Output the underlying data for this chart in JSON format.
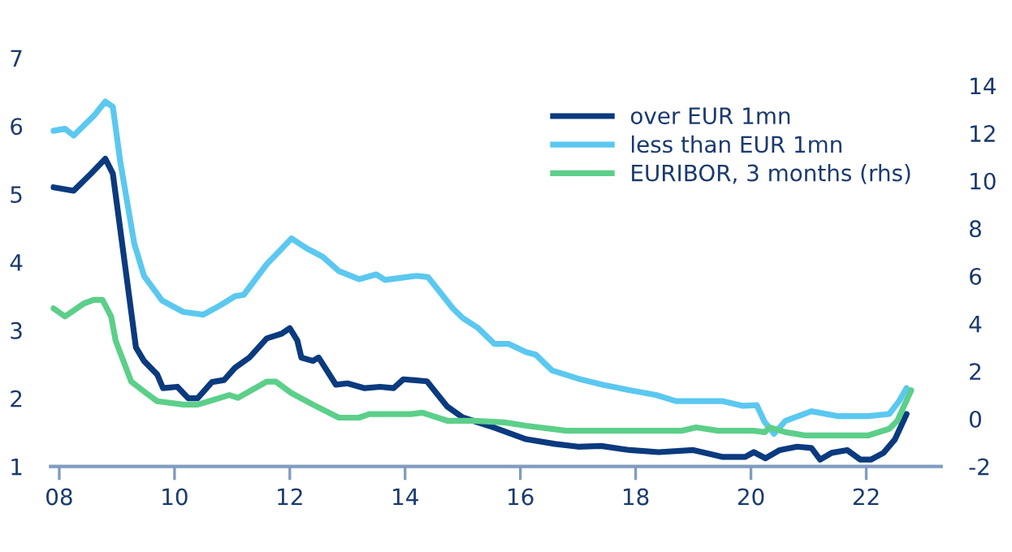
{
  "chart_data": {
    "type": "line",
    "legend": "top right",
    "grid": false,
    "xlim": [
      2007.85,
      2023.3
    ],
    "xticks": [
      {
        "value": 2008,
        "label": "08"
      },
      {
        "value": 2010,
        "label": "10"
      },
      {
        "value": 2012,
        "label": "12"
      },
      {
        "value": 2014,
        "label": "14"
      },
      {
        "value": 2016,
        "label": "16"
      },
      {
        "value": 2018,
        "label": "18"
      },
      {
        "value": 2020,
        "label": "20"
      },
      {
        "value": 2022,
        "label": "22"
      }
    ],
    "ylim": [
      1,
      7
    ],
    "yticks": [
      1,
      2,
      3,
      4,
      5,
      6,
      7
    ],
    "y2lim": [
      -2,
      14
    ],
    "y2ticks": [
      -2,
      0,
      2,
      4,
      6,
      8,
      10,
      12,
      14
    ],
    "series": [
      {
        "name": "over EUR 1mn",
        "color": "#0b3a7e",
        "x": [
          2007.9,
          2008.25,
          2008.55,
          2008.8,
          2008.93,
          2009.15,
          2009.33,
          2009.47,
          2009.7,
          2009.8,
          2010.05,
          2010.24,
          2010.4,
          2010.65,
          2010.86,
          2011.05,
          2011.3,
          2011.6,
          2011.86,
          2012.0,
          2012.13,
          2012.2,
          2012.4,
          2012.5,
          2012.8,
          2013.0,
          2013.3,
          2013.57,
          2013.8,
          2013.97,
          2014.38,
          2014.73,
          2015.0,
          2015.55,
          2016.1,
          2016.6,
          2017.0,
          2017.4,
          2017.9,
          2018.4,
          2019.0,
          2019.5,
          2019.9,
          2020.05,
          2020.25,
          2020.5,
          2020.8,
          2021.05,
          2021.2,
          2021.4,
          2021.67,
          2021.9,
          2022.08,
          2022.3,
          2022.5,
          2022.7
        ],
        "values": [
          5.1,
          5.05,
          5.3,
          5.52,
          5.3,
          3.9,
          2.75,
          2.55,
          2.35,
          2.15,
          2.17,
          2.0,
          2.0,
          2.24,
          2.27,
          2.45,
          2.6,
          2.88,
          2.95,
          3.03,
          2.85,
          2.6,
          2.55,
          2.6,
          2.2,
          2.22,
          2.15,
          2.17,
          2.15,
          2.28,
          2.25,
          1.88,
          1.72,
          1.57,
          1.4,
          1.33,
          1.29,
          1.3,
          1.24,
          1.21,
          1.24,
          1.14,
          1.14,
          1.21,
          1.12,
          1.24,
          1.29,
          1.27,
          1.1,
          1.2,
          1.24,
          1.1,
          1.1,
          1.2,
          1.4,
          1.77
        ]
      },
      {
        "name": "less than EUR 1mn",
        "color": "#5bc8f0",
        "x": [
          2007.9,
          2008.1,
          2008.25,
          2008.6,
          2008.8,
          2008.93,
          2009.06,
          2009.3,
          2009.47,
          2009.78,
          2010.15,
          2010.5,
          2010.8,
          2011.05,
          2011.2,
          2011.6,
          2012.03,
          2012.3,
          2012.57,
          2012.85,
          2013.2,
          2013.5,
          2013.65,
          2014.2,
          2014.4,
          2014.83,
          2015.0,
          2015.27,
          2015.55,
          2015.8,
          2016.1,
          2016.27,
          2016.55,
          2017.0,
          2017.43,
          2017.9,
          2018.35,
          2018.7,
          2019.5,
          2019.86,
          2020.1,
          2020.24,
          2020.4,
          2020.6,
          2021.05,
          2021.5,
          2022.03,
          2022.4,
          2022.57,
          2022.7
        ],
        "values": [
          5.93,
          5.96,
          5.86,
          6.15,
          6.36,
          6.28,
          5.47,
          4.28,
          3.8,
          3.44,
          3.27,
          3.23,
          3.37,
          3.5,
          3.52,
          3.97,
          4.35,
          4.2,
          4.08,
          3.87,
          3.75,
          3.82,
          3.74,
          3.8,
          3.78,
          3.32,
          3.18,
          3.03,
          2.8,
          2.8,
          2.68,
          2.64,
          2.41,
          2.29,
          2.2,
          2.12,
          2.05,
          1.96,
          1.96,
          1.89,
          1.9,
          1.65,
          1.48,
          1.67,
          1.81,
          1.74,
          1.74,
          1.77,
          1.96,
          2.15
        ]
      },
      {
        "name": "EURIBOR, 3 months (rhs)",
        "color": "#5ccf8a",
        "axis": "y2",
        "x": [
          2007.9,
          2008.1,
          2008.43,
          2008.6,
          2008.75,
          2008.9,
          2008.98,
          2009.25,
          2009.47,
          2009.7,
          2010.15,
          2010.4,
          2010.6,
          2010.95,
          2011.1,
          2011.6,
          2011.76,
          2012.03,
          2012.4,
          2012.85,
          2013.2,
          2013.38,
          2014.1,
          2014.3,
          2014.73,
          2015.2,
          2015.73,
          2016.1,
          2016.8,
          2018.8,
          2019.05,
          2019.43,
          2020.05,
          2020.24,
          2020.32,
          2020.6,
          2020.95,
          2022.03,
          2022.4,
          2022.54,
          2022.78
        ],
        "values": [
          4.64,
          4.3,
          4.85,
          5.0,
          5.0,
          4.3,
          3.27,
          1.56,
          1.15,
          0.74,
          0.6,
          0.6,
          0.74,
          1.0,
          0.88,
          1.56,
          1.56,
          1.08,
          0.6,
          0.05,
          0.05,
          0.2,
          0.2,
          0.26,
          -0.08,
          -0.08,
          -0.15,
          -0.29,
          -0.5,
          -0.5,
          -0.36,
          -0.5,
          -0.5,
          -0.56,
          -0.36,
          -0.56,
          -0.7,
          -0.7,
          -0.42,
          -0.08,
          1.2
        ]
      }
    ]
  }
}
